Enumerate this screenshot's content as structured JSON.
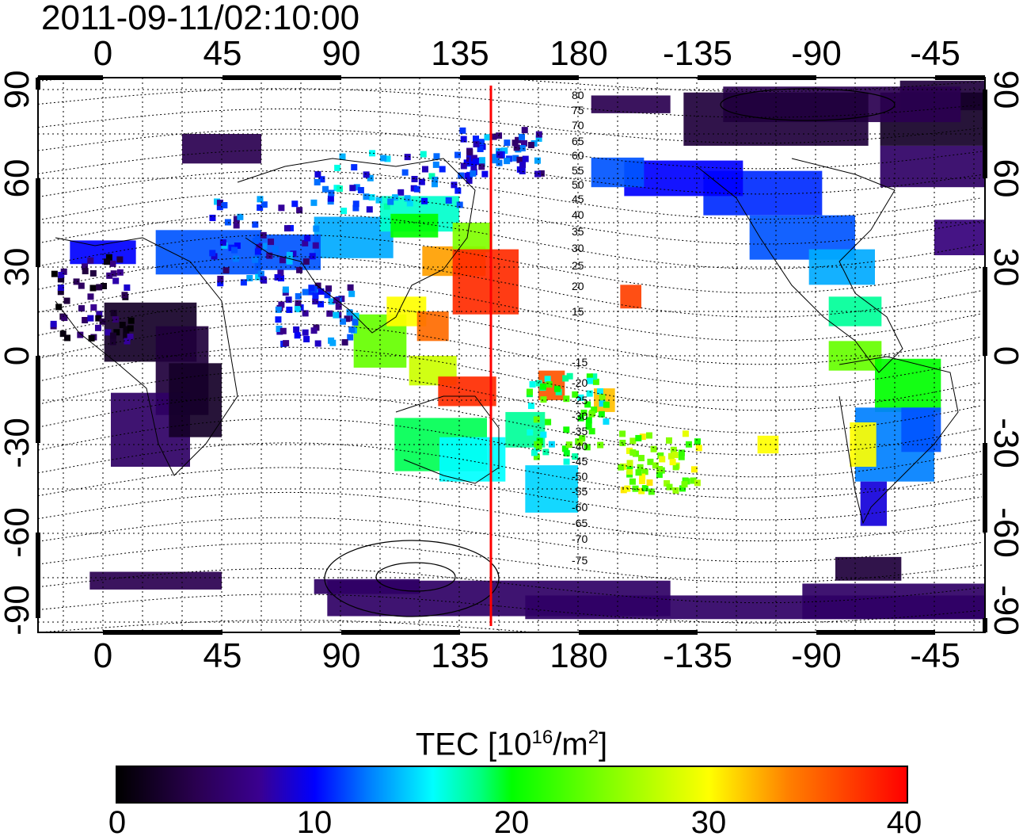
{
  "title": "2011-09-11/02:10:00",
  "x_ticks_top": [
    "0",
    "45",
    "90",
    "135",
    "180",
    "-135",
    "-90",
    "-45"
  ],
  "x_ticks_bottom": [
    "0",
    "45",
    "90",
    "135",
    "180",
    "-135",
    "-90",
    "-45"
  ],
  "y_ticks_left": [
    "90",
    "60",
    "30",
    "0",
    "-30",
    "-60",
    "-90"
  ],
  "y_ticks_right": [
    "90",
    "60",
    "30",
    "0",
    "-30",
    "-60",
    "-90"
  ],
  "contour_labels": [
    "80",
    "75",
    "70",
    "65",
    "60",
    "55",
    "50",
    "45",
    "40",
    "35",
    "30",
    "25",
    "20",
    "15",
    "-15",
    "-20",
    "-25",
    "-30",
    "-35",
    "-40",
    "-45",
    "-50",
    "-55",
    "-60",
    "-65",
    "-70",
    "-75"
  ],
  "colorbar": {
    "title_prefix": "TEC  [10",
    "title_sup": "16",
    "title_mid": "/m",
    "title_sup2": "2",
    "title_suffix": "]",
    "ticks": [
      "0",
      "10",
      "20",
      "30",
      "40"
    ],
    "min": 0,
    "max": 40
  },
  "colors": {
    "meridian_line": "#ff0000",
    "background": "#ffffff"
  },
  "meridian_longitude": 147
}
